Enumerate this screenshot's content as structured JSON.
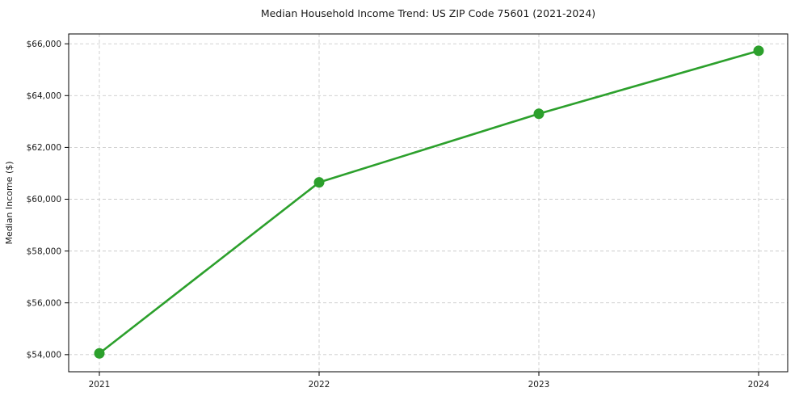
{
  "figure": {
    "background": "#ffffff"
  },
  "chart_data": {
    "type": "line",
    "title": "Median Household Income Trend: US ZIP Code 75601 (2021-2024)",
    "xlabel": "",
    "ylabel": "Median Income ($)",
    "x": [
      "2021",
      "2022",
      "2023",
      "2024"
    ],
    "values": [
      54050,
      60650,
      63300,
      65730
    ],
    "y_ticks": {
      "values": [
        54000,
        56000,
        58000,
        60000,
        62000,
        64000,
        66000
      ],
      "labels": [
        "$54,000",
        "$56,000",
        "$58,000",
        "$60,000",
        "$62,000",
        "$64,000",
        "$66,000"
      ]
    },
    "ylim": [
      53340,
      66380
    ],
    "grid": "dashed",
    "legend": "none",
    "line_color": "#2ca02c",
    "marker": "circle",
    "grid_color": "#cccccc",
    "axis_color": "#000000",
    "text_color": "#1a1a1a"
  }
}
